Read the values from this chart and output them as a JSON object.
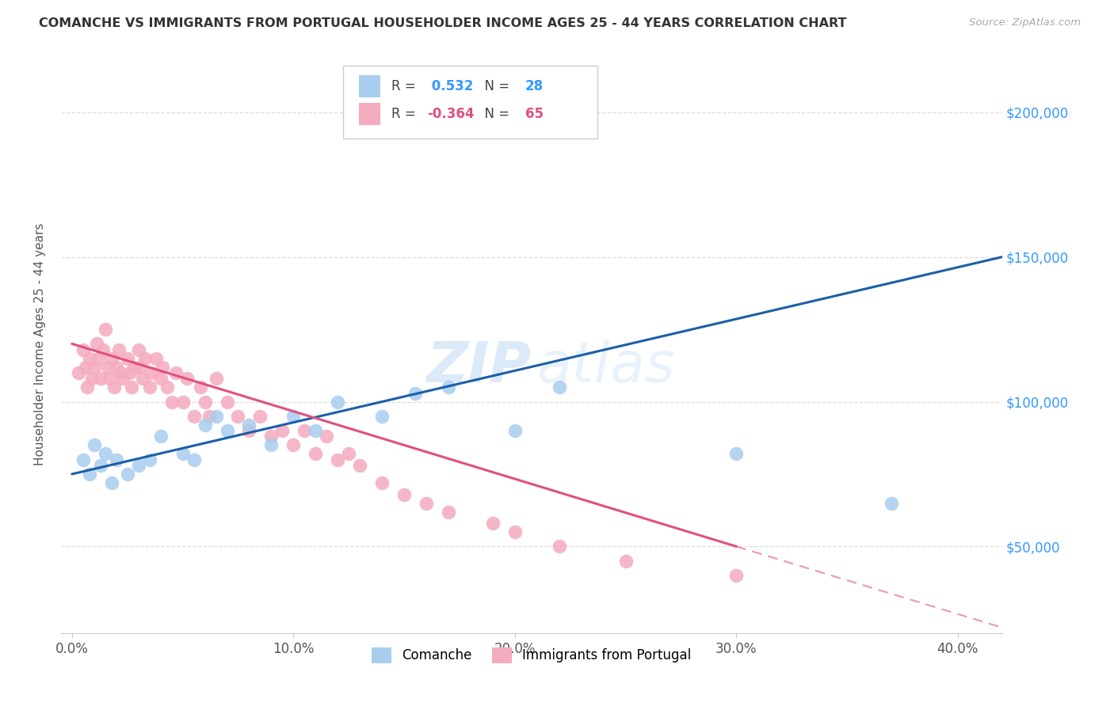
{
  "title": "COMANCHE VS IMMIGRANTS FROM PORTUGAL HOUSEHOLDER INCOME AGES 25 - 44 YEARS CORRELATION CHART",
  "source": "Source: ZipAtlas.com",
  "ylabel": "Householder Income Ages 25 - 44 years",
  "xlabel_ticks": [
    "0.0%",
    "10.0%",
    "20.0%",
    "30.0%",
    "40.0%"
  ],
  "xlabel_vals": [
    0.0,
    0.1,
    0.2,
    0.3,
    0.4
  ],
  "ylabel_ticks": [
    "$50,000",
    "$100,000",
    "$150,000",
    "$200,000"
  ],
  "ylabel_vals": [
    50000,
    100000,
    150000,
    200000
  ],
  "xlim": [
    -0.005,
    0.42
  ],
  "ylim": [
    20000,
    220000
  ],
  "comanche_R": 0.532,
  "comanche_N": 28,
  "portugal_R": -0.364,
  "portugal_N": 65,
  "comanche_color": "#A8CDEF",
  "portugal_color": "#F4ABBE",
  "comanche_line_color": "#1A5FA8",
  "portugal_line_color": "#E05080",
  "watermark_zip": "ZIP",
  "watermark_atlas": "atlas",
  "comanche_x": [
    0.005,
    0.008,
    0.01,
    0.013,
    0.015,
    0.018,
    0.02,
    0.025,
    0.03,
    0.035,
    0.04,
    0.05,
    0.055,
    0.06,
    0.065,
    0.07,
    0.08,
    0.09,
    0.1,
    0.11,
    0.12,
    0.14,
    0.155,
    0.17,
    0.2,
    0.22,
    0.3,
    0.37
  ],
  "comanche_y": [
    80000,
    75000,
    85000,
    78000,
    82000,
    72000,
    80000,
    75000,
    78000,
    80000,
    88000,
    82000,
    80000,
    92000,
    95000,
    90000,
    92000,
    85000,
    95000,
    90000,
    100000,
    95000,
    103000,
    105000,
    90000,
    105000,
    82000,
    65000
  ],
  "portugal_x": [
    0.003,
    0.005,
    0.006,
    0.007,
    0.008,
    0.009,
    0.01,
    0.011,
    0.012,
    0.013,
    0.014,
    0.015,
    0.016,
    0.017,
    0.018,
    0.019,
    0.02,
    0.021,
    0.022,
    0.023,
    0.025,
    0.026,
    0.027,
    0.028,
    0.03,
    0.031,
    0.032,
    0.033,
    0.035,
    0.036,
    0.038,
    0.04,
    0.041,
    0.043,
    0.045,
    0.047,
    0.05,
    0.052,
    0.055,
    0.058,
    0.06,
    0.062,
    0.065,
    0.07,
    0.075,
    0.08,
    0.085,
    0.09,
    0.095,
    0.1,
    0.105,
    0.11,
    0.115,
    0.12,
    0.125,
    0.13,
    0.14,
    0.15,
    0.16,
    0.17,
    0.19,
    0.2,
    0.22,
    0.25,
    0.3
  ],
  "portugal_y": [
    110000,
    118000,
    112000,
    105000,
    115000,
    108000,
    112000,
    120000,
    115000,
    108000,
    118000,
    125000,
    112000,
    108000,
    115000,
    105000,
    112000,
    118000,
    110000,
    108000,
    115000,
    110000,
    105000,
    112000,
    118000,
    112000,
    108000,
    115000,
    105000,
    110000,
    115000,
    108000,
    112000,
    105000,
    100000,
    110000,
    100000,
    108000,
    95000,
    105000,
    100000,
    95000,
    108000,
    100000,
    95000,
    90000,
    95000,
    88000,
    90000,
    85000,
    90000,
    82000,
    88000,
    80000,
    82000,
    78000,
    72000,
    68000,
    65000,
    62000,
    58000,
    55000,
    50000,
    45000,
    40000
  ],
  "blue_line_x0": 0.0,
  "blue_line_y0": 75000,
  "blue_line_x1": 0.42,
  "blue_line_y1": 150000,
  "pink_line_x0": 0.0,
  "pink_line_y0": 120000,
  "pink_line_x1": 0.42,
  "pink_line_y1": 22000
}
